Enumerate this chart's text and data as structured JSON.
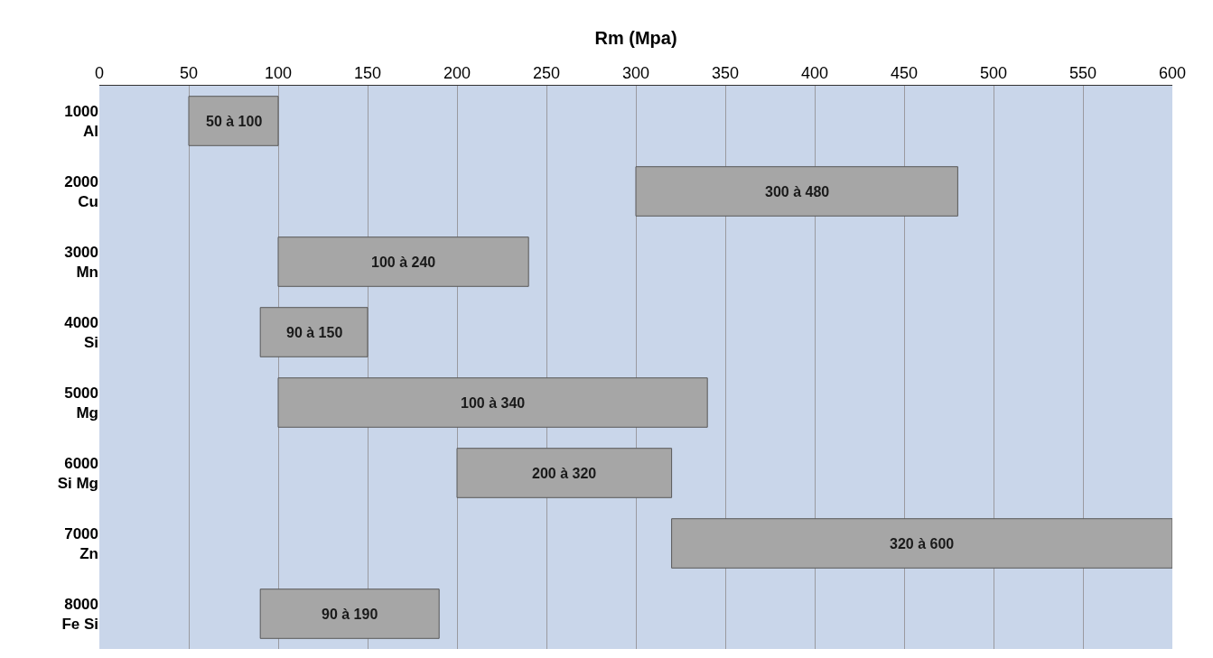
{
  "chart_data": {
    "type": "bar",
    "orientation": "horizontal",
    "xlabel": "Rm (Mpa)",
    "categories": [
      "1000\nAl",
      "2000\nCu",
      "3000\nMn",
      "4000\nSi",
      "5000\nMg",
      "6000\nSi Mg",
      "7000\nZn",
      "8000\nFe Si"
    ],
    "base": [
      50,
      300,
      100,
      90,
      100,
      200,
      320,
      90
    ],
    "values": [
      50,
      180,
      140,
      60,
      240,
      120,
      280,
      100
    ],
    "annotations": [
      "50 à 100",
      "300 à 480",
      "100 à 240",
      "90 à 150",
      "100 à 340",
      "200 à 320",
      "320 à 600",
      "90 à 190"
    ],
    "color": "#a6a6a6",
    "xlim": [
      0,
      600
    ],
    "xticks": [
      0,
      50,
      100,
      150,
      200,
      250,
      300,
      350,
      400,
      450,
      500,
      550,
      600
    ],
    "grid": "x",
    "legend": false
  }
}
